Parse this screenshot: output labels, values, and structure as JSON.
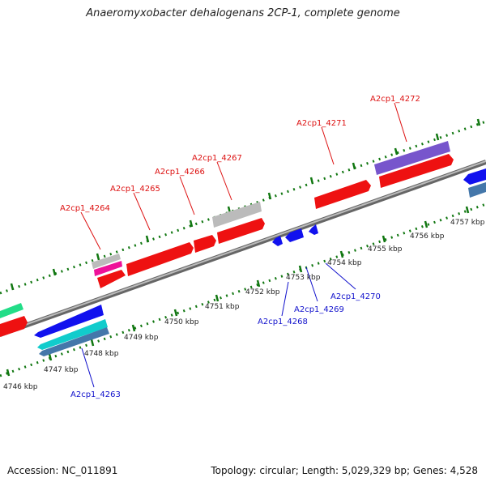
{
  "title": "Anaeromyxobacter dehalogenans 2CP-1, complete genome",
  "footer": {
    "accession": "Accession: NC_011891",
    "summary": "Topology: circular; Length: 5,029,329 bp; Genes: 4,528"
  },
  "colors": {
    "forward_label": "#dd1111",
    "reverse_label": "#1111cc",
    "backbone": "#888888",
    "tick": "#117711"
  },
  "scale_labels": [
    "4746 kbp",
    "4747 kbp",
    "4748 kbp",
    "4749 kbp",
    "4750 kbp",
    "4751 kbp",
    "4752 kbp",
    "4753 kbp",
    "4754 kbp",
    "4755 kbp",
    "4756 kbp",
    "4757 kbp"
  ],
  "forward_gene_labels": [
    "A2cp1_4264",
    "A2cp1_4265",
    "A2cp1_4266",
    "A2cp1_4267",
    "A2cp1_4271",
    "A2cp1_4272"
  ],
  "reverse_gene_labels": [
    "A2cp1_4263",
    "A2cp1_4268",
    "A2cp1_4269",
    "A2cp1_4270"
  ]
}
